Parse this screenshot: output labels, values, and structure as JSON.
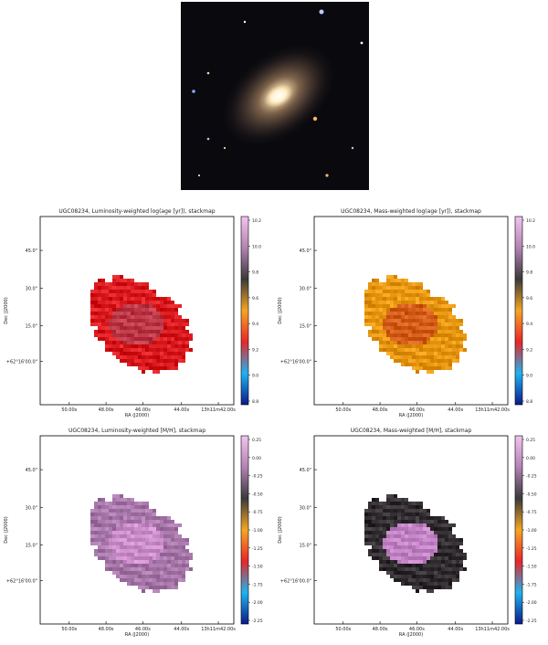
{
  "galaxy_image": {
    "description_icon": "galaxy-photo-icon"
  },
  "chart_data": [
    {
      "type": "heatmap",
      "title": "UGC08234, Luminosity-weighted log(age [yr]), stackmap",
      "xlabel": "RA (J2000)",
      "ylabel": "Dec (J2000)",
      "x_ticks": [
        "50.00s",
        "48.00s",
        "46.00s",
        "44.00s",
        "13h11m42.00s"
      ],
      "y_ticks": [
        "45.0\"",
        "30.0\"",
        "15.0\"",
        "+62°16'00.0\""
      ],
      "colorbar": {
        "ticks": [
          "10.2",
          "10.0",
          "9.8",
          "9.6",
          "9.4",
          "9.2",
          "9.0",
          "8.8"
        ],
        "stops": [
          "#f2c4ef",
          "#b382b4",
          "#3a3a3a",
          "#f5a623",
          "#e8262a",
          "#1fb3f0",
          "#0b1a8a"
        ]
      },
      "map_color_main": "#e5262b",
      "map_color_core": "#c94452",
      "grid": false
    },
    {
      "type": "heatmap",
      "title": "UGC08234, Mass-weighted log(age [yr]), stackmap",
      "xlabel": "RA (J2000)",
      "ylabel": "Dec (J2000)",
      "x_ticks": [
        "50.00s",
        "48.00s",
        "46.00s",
        "44.00s",
        "13h11m42.00s"
      ],
      "y_ticks": [
        "45.0\"",
        "30.0\"",
        "15.0\"",
        "+62°16'00.0\""
      ],
      "colorbar": {
        "ticks": [
          "10.2",
          "10.0",
          "9.8",
          "9.6",
          "9.4",
          "9.2",
          "9.0",
          "8.8"
        ],
        "stops": [
          "#f2c4ef",
          "#b382b4",
          "#3a3a3a",
          "#f5a623",
          "#e8262a",
          "#1fb3f0",
          "#0b1a8a"
        ]
      },
      "map_color_main": "#f2a21c",
      "map_color_core": "#e06a25",
      "grid": false
    },
    {
      "type": "heatmap",
      "title": "UGC08234, Luminosity-weighted [M/H], stackmap",
      "xlabel": "RA (J2000)",
      "ylabel": "Dec (J2000)",
      "x_ticks": [
        "50.00s",
        "48.00s",
        "46.00s",
        "44.00s",
        "13h11m42.00s"
      ],
      "y_ticks": [
        "45.0\"",
        "30.0\"",
        "15.0\"",
        "+62°16'00.0\""
      ],
      "colorbar": {
        "ticks": [
          "0.25",
          "0.00",
          "-0.25",
          "-0.50",
          "-0.75",
          "-1.00",
          "-1.25",
          "-1.50",
          "-1.75",
          "-2.00",
          "-2.25"
        ],
        "stops": [
          "#f2c4ef",
          "#b382b4",
          "#3a3a3a",
          "#f5a623",
          "#e8262a",
          "#1fb3f0",
          "#0b1a8a"
        ]
      },
      "map_color_main": "#b383b6",
      "map_color_core": "#d79ad7",
      "grid": false
    },
    {
      "type": "heatmap",
      "title": "UGC08234, Mass-weighted [M/H], stackmap",
      "xlabel": "RA (J2000)",
      "ylabel": "Dec (J2000)",
      "x_ticks": [
        "50.00s",
        "48.00s",
        "46.00s",
        "44.00s",
        "13h11m42.00s"
      ],
      "y_ticks": [
        "45.0\"",
        "30.0\"",
        "15.0\"",
        "+62°16'00.0\""
      ],
      "colorbar": {
        "ticks": [
          "0.25",
          "0.00",
          "-0.25",
          "-0.50",
          "-0.75",
          "-1.00",
          "-1.25",
          "-1.50",
          "-1.75",
          "-2.00",
          "-2.25"
        ],
        "stops": [
          "#f2c4ef",
          "#b382b4",
          "#3a3a3a",
          "#f5a623",
          "#e8262a",
          "#1fb3f0",
          "#0b1a8a"
        ]
      },
      "map_color_main": "#3f3a3d",
      "map_color_core": "#cd8fd0",
      "grid": false
    }
  ]
}
